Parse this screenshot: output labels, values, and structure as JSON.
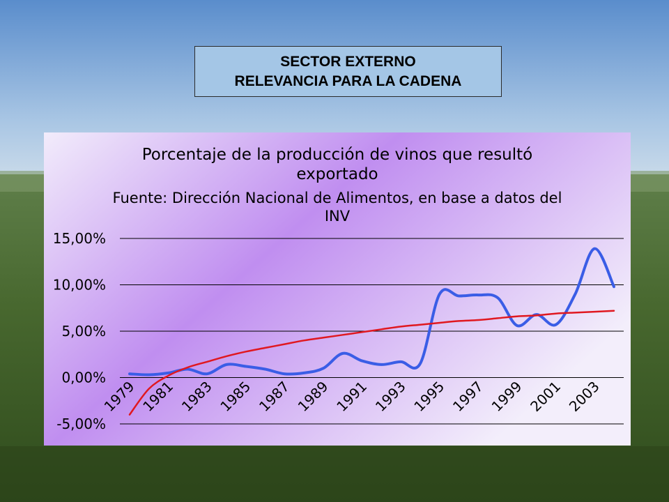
{
  "slide": {
    "title_line1": "SECTOR EXTERNO",
    "title_line2": "RELEVANCIA PARA LA CADENA"
  },
  "chart_data": {
    "type": "line",
    "title": "Porcentaje de la producción de vinos que resultó exportado",
    "subtitle": "Fuente: Dirección Nacional de Alimentos, en base a datos del INV",
    "title_lines": [
      "Porcentaje de la producción de vinos que resultó",
      "exportado"
    ],
    "subtitle_lines": [
      "Fuente: Dirección Nacional de Alimentos, en base a datos del",
      "INV"
    ],
    "xlabel": "",
    "ylabel": "",
    "x": [
      1979,
      1980,
      1981,
      1982,
      1983,
      1984,
      1985,
      1986,
      1987,
      1988,
      1989,
      1990,
      1991,
      1992,
      1993,
      1994,
      1995,
      1996,
      1997,
      1998,
      1999,
      2000,
      2001,
      2002,
      2003,
      2004
    ],
    "x_tick_labels": [
      "1979",
      "1981",
      "1983",
      "1985",
      "1987",
      "1989",
      "1991",
      "1993",
      "1995",
      "1997",
      "1999",
      "2001",
      "2003"
    ],
    "y_tick_labels": [
      "15,00%",
      "10,00%",
      "5,00%",
      "0,00%",
      "-5,00%"
    ],
    "y_ticks": [
      15,
      10,
      5,
      0,
      -5
    ],
    "ylim": [
      -5,
      15
    ],
    "series": [
      {
        "values": [
          0.4,
          0.3,
          0.5,
          0.9,
          0.4,
          1.4,
          1.2,
          0.9,
          0.4,
          0.5,
          1.0,
          2.6,
          1.8,
          1.4,
          1.7,
          1.5,
          9.0,
          8.8,
          8.9,
          8.6,
          5.6,
          6.8,
          5.7,
          9.0,
          13.9,
          9.8
        ],
        "color": "#3a5de6"
      },
      {
        "values": [
          -4.0,
          -1.2,
          0.2,
          1.1,
          1.7,
          2.3,
          2.8,
          3.2,
          3.6,
          4.0,
          4.3,
          4.6,
          4.9,
          5.2,
          5.5,
          5.7,
          5.9,
          6.1,
          6.2,
          6.4,
          6.6,
          6.7,
          6.9,
          7.0,
          7.1,
          7.2
        ],
        "color": "#e01820"
      }
    ],
    "grid": "horizontal",
    "legend": "none"
  }
}
